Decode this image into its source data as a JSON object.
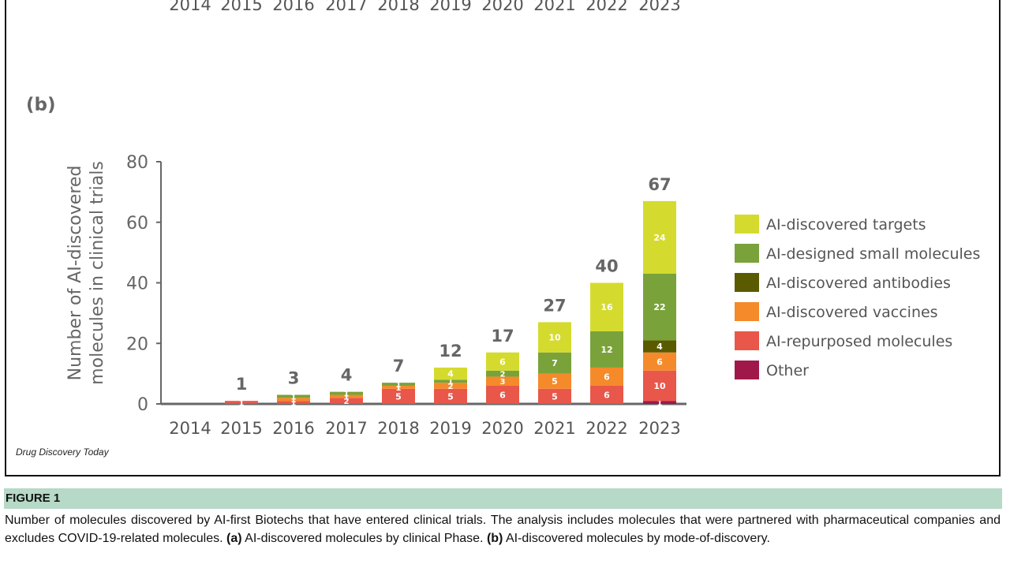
{
  "top_panel": {
    "years": [
      "2014",
      "2015",
      "2016",
      "2017",
      "2018",
      "2019",
      "2020",
      "2021",
      "2022",
      "2023"
    ]
  },
  "panel_b": {
    "label": "(b)"
  },
  "chart_data": {
    "type": "bar",
    "stacked": true,
    "categories": [
      "2014",
      "2015",
      "2016",
      "2017",
      "2018",
      "2019",
      "2020",
      "2021",
      "2022",
      "2023"
    ],
    "ylabel_line1": "Number of AI-discovered",
    "ylabel_line2": "molecules in clinical trials",
    "ylim": [
      0,
      80
    ],
    "yticks": [
      0,
      20,
      40,
      60,
      80
    ],
    "totals": [
      "",
      "1",
      "3",
      "4",
      "7",
      "12",
      "17",
      "27",
      "40",
      "67"
    ],
    "legend_position": "right",
    "series": [
      {
        "name": "Other",
        "color": "#a0184a",
        "values": [
          0,
          0,
          0,
          0,
          0,
          0,
          0,
          0,
          0,
          1
        ],
        "labels": [
          "",
          "",
          "",
          "",
          "",
          "",
          "",
          "",
          "",
          "1"
        ]
      },
      {
        "name": "AI-repurposed molecules",
        "color": "#e8574a",
        "values": [
          0,
          1,
          1,
          2,
          5,
          5,
          6,
          5,
          6,
          10
        ],
        "labels": [
          "",
          "1",
          "1",
          "2",
          "5",
          "5",
          "6",
          "5",
          "6",
          "10"
        ]
      },
      {
        "name": "AI-discovered vaccines",
        "color": "#f58a2a",
        "values": [
          0,
          0,
          1,
          1,
          1,
          2,
          3,
          5,
          6,
          6
        ],
        "labels": [
          "",
          "",
          "1",
          "1",
          "1",
          "2",
          "3",
          "5",
          "6",
          "6"
        ]
      },
      {
        "name": "AI-discovered antibodies",
        "color": "#5a5a00",
        "values": [
          0,
          0,
          0,
          0,
          0,
          0,
          0,
          0,
          0,
          4
        ],
        "labels": [
          "",
          "",
          "",
          "",
          "",
          "",
          "",
          "",
          "",
          "4"
        ]
      },
      {
        "name": "AI-designed small molecules",
        "color": "#7aa23a",
        "values": [
          0,
          0,
          1,
          1,
          1,
          1,
          2,
          7,
          12,
          22
        ],
        "labels": [
          "",
          "",
          "1",
          "1",
          "1",
          "1",
          "2",
          "7",
          "12",
          "22"
        ]
      },
      {
        "name": "AI-discovered targets",
        "color": "#d4db2e",
        "values": [
          0,
          0,
          0,
          0,
          0,
          4,
          6,
          10,
          16,
          24
        ],
        "labels": [
          "",
          "",
          "",
          "",
          "",
          "4",
          "6",
          "10",
          "16",
          "24"
        ]
      }
    ],
    "legend_order": [
      "AI-discovered targets",
      "AI-designed small molecules",
      "AI-discovered antibodies",
      "AI-discovered vaccines",
      "AI-repurposed molecules",
      "Other"
    ]
  },
  "source": "Drug Discovery Today",
  "figure": {
    "heading": "FIGURE 1",
    "caption_part1": "Number of molecules discovered by AI-first Biotechs that have entered clinical trials. The analysis includes molecules that were partnered with pharmaceutical companies and excludes COVID-19-related molecules. ",
    "caption_a_label": "(a)",
    "caption_a_text": " AI-discovered molecules by clinical Phase. ",
    "caption_b_label": "(b)",
    "caption_b_text": " AI-discovered molecules by mode-of-discovery."
  }
}
